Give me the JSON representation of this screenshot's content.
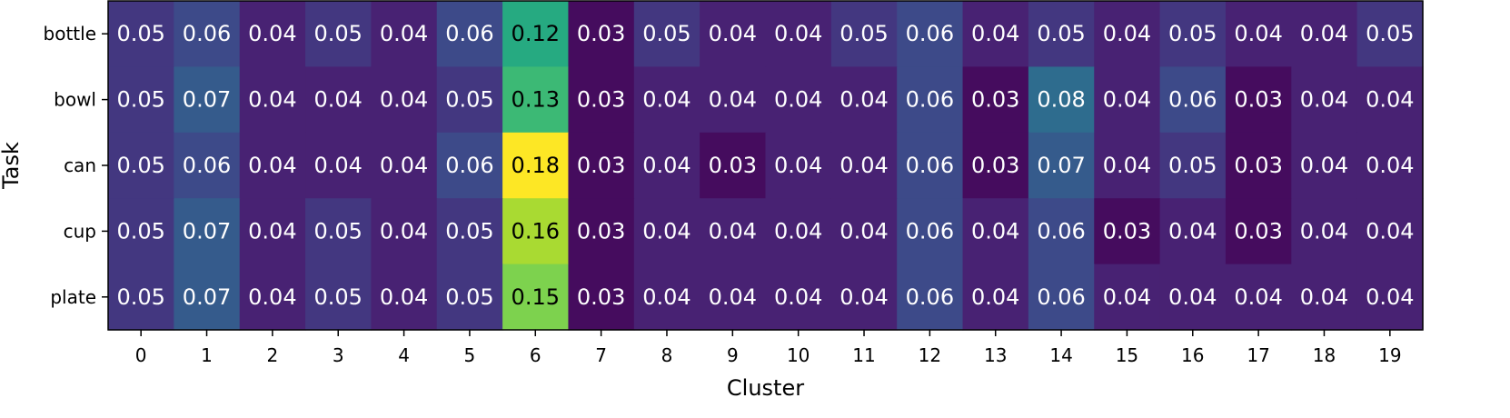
{
  "chart_data": {
    "type": "heatmap",
    "xlabel": "Cluster",
    "ylabel": "Task",
    "rows": [
      "bottle",
      "bowl",
      "can",
      "cup",
      "plate"
    ],
    "columns": [
      "0",
      "1",
      "2",
      "3",
      "4",
      "5",
      "6",
      "7",
      "8",
      "9",
      "10",
      "11",
      "12",
      "13",
      "14",
      "15",
      "16",
      "17",
      "18",
      "19"
    ],
    "values": [
      [
        0.05,
        0.06,
        0.04,
        0.05,
        0.04,
        0.06,
        0.12,
        0.03,
        0.05,
        0.04,
        0.04,
        0.05,
        0.06,
        0.04,
        0.05,
        0.04,
        0.05,
        0.04,
        0.04,
        0.05
      ],
      [
        0.05,
        0.07,
        0.04,
        0.04,
        0.04,
        0.05,
        0.13,
        0.03,
        0.04,
        0.04,
        0.04,
        0.04,
        0.06,
        0.03,
        0.08,
        0.04,
        0.06,
        0.03,
        0.04,
        0.04
      ],
      [
        0.05,
        0.06,
        0.04,
        0.04,
        0.04,
        0.06,
        0.18,
        0.03,
        0.04,
        0.03,
        0.04,
        0.04,
        0.06,
        0.03,
        0.07,
        0.04,
        0.05,
        0.03,
        0.04,
        0.04
      ],
      [
        0.05,
        0.07,
        0.04,
        0.05,
        0.04,
        0.05,
        0.16,
        0.03,
        0.04,
        0.04,
        0.04,
        0.04,
        0.06,
        0.04,
        0.06,
        0.03,
        0.04,
        0.03,
        0.04,
        0.04
      ],
      [
        0.05,
        0.07,
        0.04,
        0.05,
        0.04,
        0.05,
        0.15,
        0.03,
        0.04,
        0.04,
        0.04,
        0.04,
        0.06,
        0.04,
        0.06,
        0.04,
        0.04,
        0.04,
        0.04,
        0.04
      ]
    ],
    "colormap": "viridis",
    "value_range": [
      0.025,
      0.18
    ],
    "annotations": true,
    "grid": false,
    "legend": "none"
  }
}
